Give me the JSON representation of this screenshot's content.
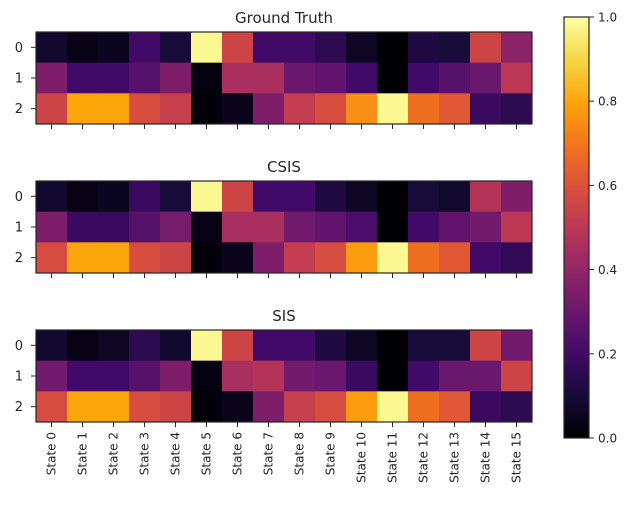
{
  "chart_data": {
    "type": "heatmap",
    "colormap": "inferno",
    "columns": [
      "State 0",
      "State 1",
      "State 2",
      "State 3",
      "State 4",
      "State 5",
      "State 6",
      "State 7",
      "State 8",
      "State 9",
      "State 10",
      "State 11",
      "State 12",
      "State 13",
      "State 14",
      "State 15"
    ],
    "rows": [
      "0",
      "1",
      "2"
    ],
    "value_range": [
      0.0,
      1.0
    ],
    "colorbar": {
      "ticks": [
        0.0,
        0.2,
        0.4,
        0.6,
        0.8,
        1.0
      ],
      "tick_labels": [
        "0.0",
        "0.2",
        "0.4",
        "0.6",
        "0.8",
        "1.0"
      ]
    },
    "panels": [
      {
        "title": "Ground Truth",
        "values": [
          [
            0.08,
            0.03,
            0.05,
            0.2,
            0.1,
            0.98,
            0.55,
            0.2,
            0.2,
            0.15,
            0.06,
            0.0,
            0.12,
            0.1,
            0.55,
            0.38
          ],
          [
            0.35,
            0.2,
            0.2,
            0.25,
            0.35,
            0.02,
            0.45,
            0.45,
            0.3,
            0.28,
            0.2,
            0.0,
            0.2,
            0.25,
            0.3,
            0.5
          ],
          [
            0.55,
            0.8,
            0.8,
            0.58,
            0.53,
            0.01,
            0.04,
            0.35,
            0.52,
            0.58,
            0.75,
            0.98,
            0.68,
            0.62,
            0.18,
            0.15
          ]
        ]
      },
      {
        "title": "CSIS",
        "values": [
          [
            0.08,
            0.03,
            0.05,
            0.18,
            0.1,
            0.98,
            0.55,
            0.2,
            0.2,
            0.12,
            0.06,
            0.0,
            0.1,
            0.08,
            0.48,
            0.35
          ],
          [
            0.35,
            0.18,
            0.18,
            0.25,
            0.33,
            0.03,
            0.45,
            0.45,
            0.32,
            0.28,
            0.22,
            0.0,
            0.2,
            0.28,
            0.32,
            0.5
          ],
          [
            0.58,
            0.8,
            0.8,
            0.58,
            0.55,
            0.01,
            0.04,
            0.35,
            0.52,
            0.58,
            0.78,
            0.98,
            0.68,
            0.62,
            0.2,
            0.16
          ]
        ]
      },
      {
        "title": "SIS",
        "values": [
          [
            0.08,
            0.03,
            0.06,
            0.15,
            0.08,
            0.98,
            0.55,
            0.2,
            0.2,
            0.12,
            0.06,
            0.0,
            0.1,
            0.1,
            0.55,
            0.32
          ],
          [
            0.32,
            0.2,
            0.2,
            0.25,
            0.35,
            0.02,
            0.45,
            0.48,
            0.32,
            0.3,
            0.18,
            0.0,
            0.2,
            0.3,
            0.3,
            0.55
          ],
          [
            0.58,
            0.8,
            0.8,
            0.58,
            0.55,
            0.01,
            0.04,
            0.35,
            0.53,
            0.58,
            0.78,
            0.98,
            0.68,
            0.62,
            0.18,
            0.15
          ]
        ]
      }
    ]
  }
}
